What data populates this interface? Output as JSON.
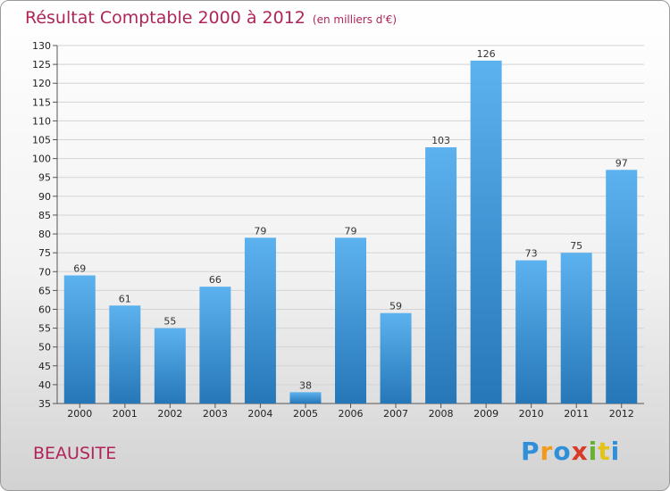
{
  "title": "Résultat Comptable 2000 à 2012",
  "unit": "(en milliers d'€)",
  "city": "BEAUSITE",
  "logo": {
    "letters": [
      "P",
      "r",
      "o",
      "x",
      "i",
      "t",
      "i"
    ],
    "colors": [
      "#2f8fd8",
      "#f29a1c",
      "#2f8fd8",
      "#d83b2a",
      "#67b331",
      "#e3c21a",
      "#2f8fd8"
    ]
  },
  "chart_data": {
    "type": "bar",
    "title": "Résultat Comptable 2000 à 2012",
    "xlabel": "",
    "ylabel": "",
    "categories": [
      "2000",
      "2001",
      "2002",
      "2003",
      "2004",
      "2005",
      "2006",
      "2007",
      "2008",
      "2009",
      "2010",
      "2011",
      "2012"
    ],
    "values": [
      69,
      61,
      55,
      66,
      79,
      38,
      79,
      59,
      103,
      126,
      73,
      75,
      97
    ],
    "ylim": [
      35,
      130
    ],
    "ytick_step": 5,
    "grid": true,
    "bar_color": "#3a8fd6"
  }
}
